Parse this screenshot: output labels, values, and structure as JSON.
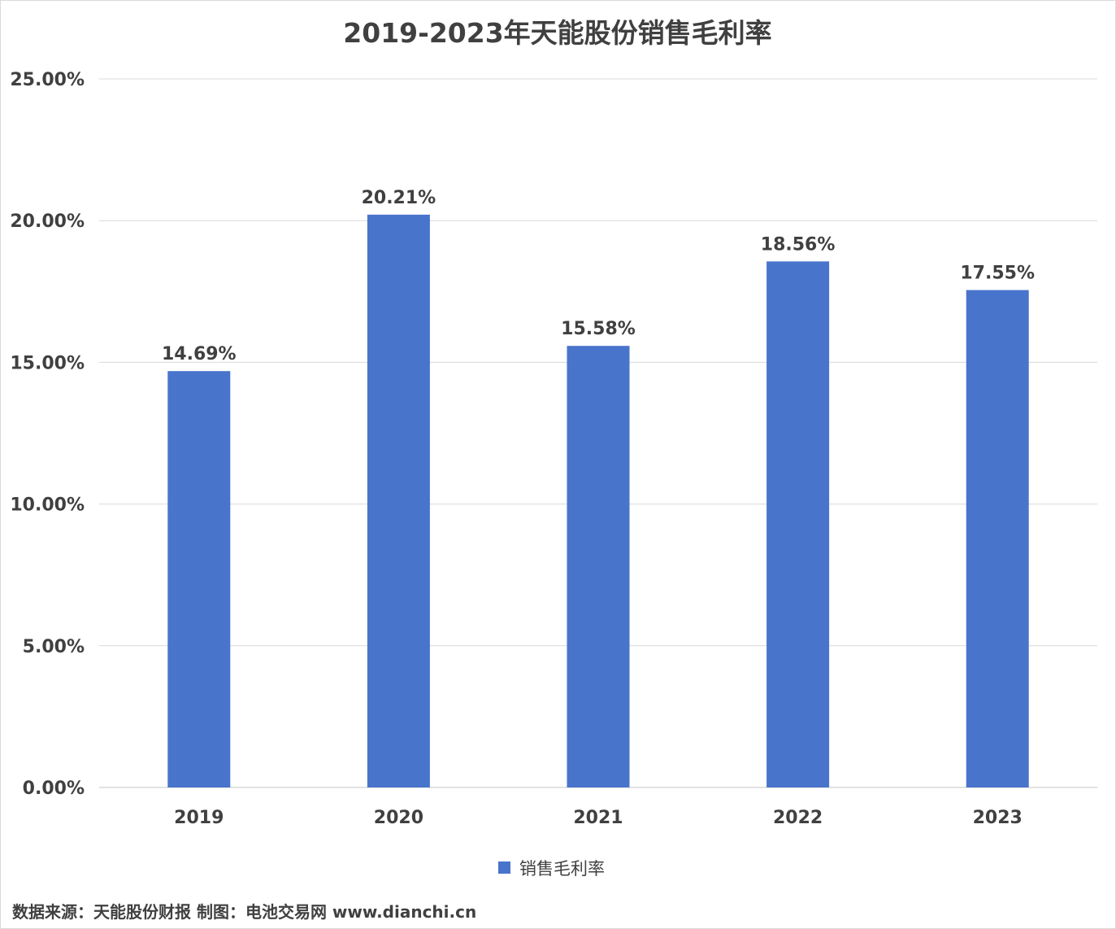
{
  "chart_data": {
    "type": "bar",
    "title": "2019-2023年天能股份销售毛利率",
    "categories": [
      "2019",
      "2020",
      "2021",
      "2022",
      "2023"
    ],
    "series": [
      {
        "name": "销售毛利率",
        "values": [
          14.69,
          20.21,
          15.58,
          18.56,
          17.55
        ],
        "labels": [
          "14.69%",
          "20.21%",
          "15.58%",
          "18.56%",
          "17.55%"
        ],
        "color": "#4874CB"
      }
    ],
    "xlabel": "",
    "ylabel": "",
    "ylim": [
      0,
      25
    ],
    "yticks": [
      0,
      5,
      10,
      15,
      20,
      25
    ],
    "ytick_labels": [
      "0.00%",
      "5.00%",
      "10.00%",
      "15.00%",
      "20.00%",
      "25.00%"
    ],
    "grid": true,
    "legend_position": "bottom"
  },
  "footer": {
    "source_text": "数据来源：天能股份财报  制图：电池交易网 www.dianchi.cn"
  },
  "colors": {
    "bar": "#4874CB",
    "grid": "#d9d9d9",
    "text": "#404040"
  }
}
